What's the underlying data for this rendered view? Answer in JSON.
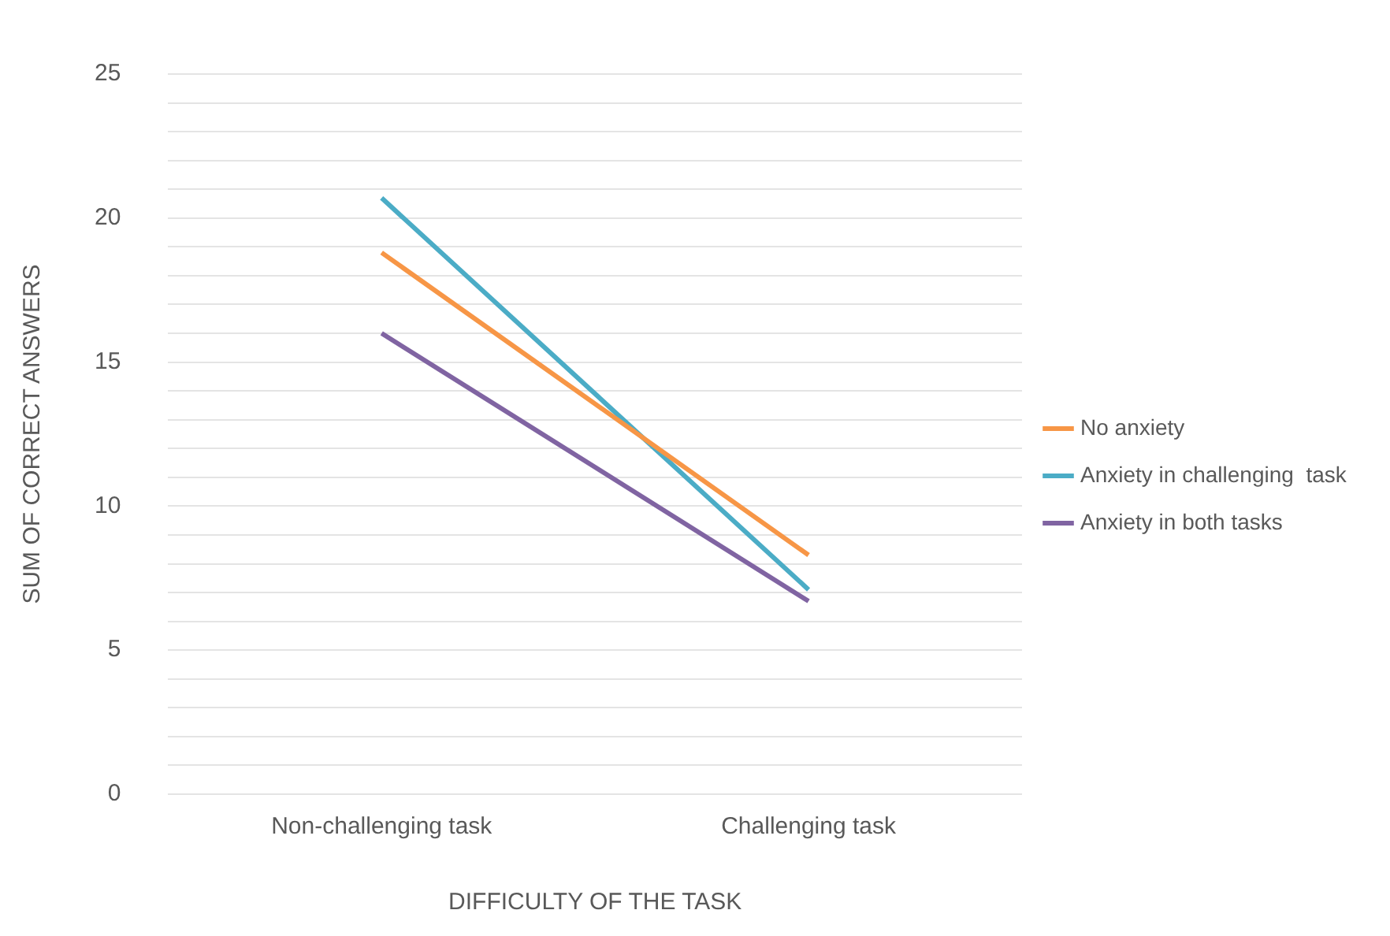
{
  "chart_data": {
    "type": "line",
    "xlabel": "DIFFICULTY OF THE TASK",
    "ylabel": "SUM OF CORRECT ANSWERS",
    "categories": [
      "Non-challenging task",
      "Challenging task"
    ],
    "series": [
      {
        "name": "No anxiety",
        "color": "#f79646",
        "values": [
          18.8,
          8.3
        ]
      },
      {
        "name": "Anxiety in challenging  task",
        "color": "#4bacc6",
        "values": [
          20.7,
          7.1
        ]
      },
      {
        "name": "Anxiety in both tasks",
        "color": "#8064a2",
        "values": [
          16,
          6.7
        ]
      }
    ],
    "ylim": [
      0,
      25
    ],
    "yticks": [
      0,
      {
        "value": 1,
        "label": null
      },
      {
        "value": 2,
        "label": null
      },
      {
        "value": 3,
        "label": null
      },
      {
        "value": 4,
        "label": null
      },
      5,
      {
        "value": 6,
        "label": null
      },
      {
        "value": 7,
        "label": null
      },
      {
        "value": 8,
        "label": null
      },
      {
        "value": 9,
        "label": null
      },
      10,
      {
        "value": 11,
        "label": null
      },
      {
        "value": 12,
        "label": null
      },
      {
        "value": 13,
        "label": null
      },
      {
        "value": 14,
        "label": null
      },
      15,
      {
        "value": 16,
        "label": null
      },
      {
        "value": 17,
        "label": null
      },
      {
        "value": 18,
        "label": null
      },
      {
        "value": 19,
        "label": null
      },
      20,
      {
        "value": 21,
        "label": null
      },
      {
        "value": 22,
        "label": null
      },
      {
        "value": 23,
        "label": null
      },
      {
        "value": 24,
        "label": null
      },
      25
    ],
    "grid": "y",
    "legend": "right",
    "marker": "none",
    "line_style": "solid"
  }
}
